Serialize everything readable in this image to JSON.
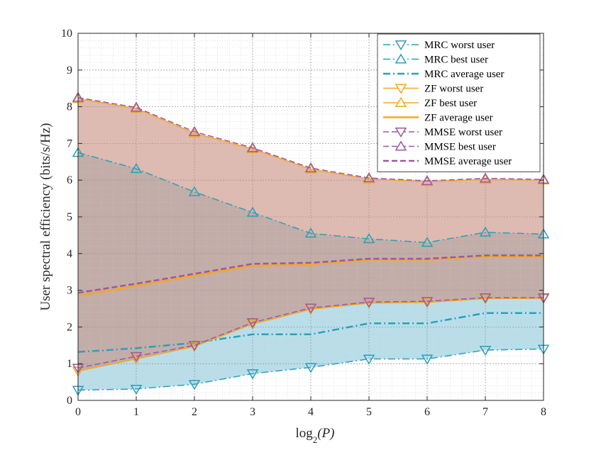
{
  "chart_data": {
    "type": "line",
    "title": "",
    "xlabel_main": "log",
    "xlabel_sub": "2",
    "xlabel_arg": "(P)",
    "ylabel": "User spectral efficiency (bits/s/Hz)",
    "x": [
      0,
      1,
      2,
      3,
      4,
      5,
      6,
      7,
      8
    ],
    "xlim": [
      0,
      8
    ],
    "ylim": [
      0,
      10
    ],
    "xticks": [
      "0",
      "1",
      "2",
      "3",
      "4",
      "5",
      "6",
      "7",
      "8"
    ],
    "yticks": [
      "0",
      "1",
      "2",
      "3",
      "4",
      "5",
      "6",
      "7",
      "8",
      "9",
      "10"
    ],
    "grid": true,
    "minor_grid": true,
    "legend_position": "top-right",
    "bands": [
      {
        "name": "MRC range",
        "lower": "MRC worst user",
        "upper": "MRC best user",
        "color": "#ADD8E6"
      },
      {
        "name": "ZF range",
        "lower": "ZF worst user",
        "upper": "ZF best user",
        "color": "#C9907F"
      }
    ],
    "series": [
      {
        "name": "MRC worst user",
        "values": [
          0.28,
          0.31,
          0.44,
          0.73,
          0.9,
          1.13,
          1.13,
          1.37,
          1.4
        ],
        "color": "#2AA0B8",
        "dash": "dashdot",
        "marker": "triangle-down",
        "width": 1.5
      },
      {
        "name": "MRC best user",
        "values": [
          6.75,
          6.31,
          5.68,
          5.12,
          4.55,
          4.4,
          4.3,
          4.58,
          4.53
        ],
        "color": "#2AA0B8",
        "dash": "dashdot",
        "marker": "triangle-up",
        "width": 1.5
      },
      {
        "name": "MRC average user",
        "values": [
          1.32,
          1.42,
          1.57,
          1.8,
          1.8,
          2.1,
          2.1,
          2.38,
          2.38
        ],
        "color": "#2AA0B8",
        "dash": "dashdot",
        "marker": "none",
        "width": 2.5
      },
      {
        "name": "ZF worst user",
        "values": [
          0.8,
          1.13,
          1.47,
          2.08,
          2.48,
          2.65,
          2.67,
          2.77,
          2.78
        ],
        "color": "#F5A623",
        "dash": "solid",
        "marker": "triangle-down",
        "width": 1.5
      },
      {
        "name": "ZF best user",
        "values": [
          8.22,
          7.95,
          7.28,
          6.85,
          6.3,
          6.03,
          5.96,
          6.02,
          6.0
        ],
        "color": "#F5A623",
        "dash": "solid",
        "marker": "triangle-up",
        "width": 1.5
      },
      {
        "name": "ZF average user",
        "values": [
          2.85,
          3.12,
          3.4,
          3.67,
          3.7,
          3.83,
          3.83,
          3.92,
          3.92
        ],
        "color": "#F5A623",
        "dash": "solid",
        "marker": "none",
        "width": 2.5
      },
      {
        "name": "MMSE worst user",
        "values": [
          0.88,
          1.2,
          1.5,
          2.12,
          2.52,
          2.68,
          2.7,
          2.8,
          2.8
        ],
        "color": "#9B59A0",
        "dash": "dashed",
        "marker": "triangle-down",
        "width": 1.5
      },
      {
        "name": "MMSE best user",
        "values": [
          8.25,
          7.98,
          7.32,
          6.88,
          6.33,
          6.06,
          5.98,
          6.05,
          6.02
        ],
        "color": "#9B59A0",
        "dash": "dashed",
        "marker": "triangle-up",
        "width": 1.5
      },
      {
        "name": "MMSE average user",
        "values": [
          2.93,
          3.18,
          3.45,
          3.72,
          3.75,
          3.86,
          3.86,
          3.95,
          3.95
        ],
        "color": "#9B59A0",
        "dash": "dashed",
        "marker": "none",
        "width": 2.5
      }
    ]
  }
}
